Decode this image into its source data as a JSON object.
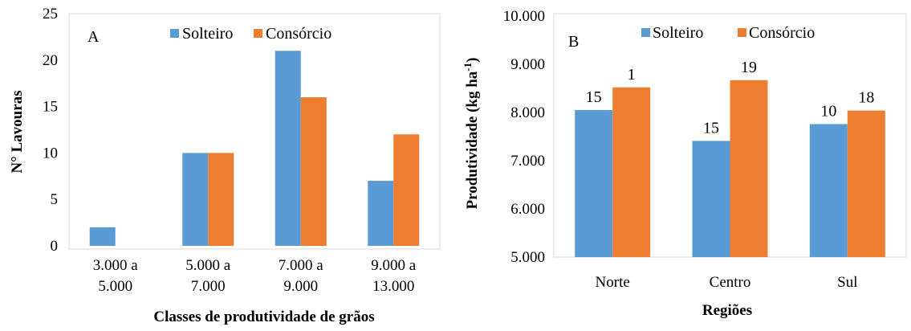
{
  "colors": {
    "Solteiro": "#5b9bd5",
    "Consórcio": "#ed7d31",
    "frame": "#d9d9d9"
  },
  "chart_data": [
    {
      "type": "bar",
      "panel": "A",
      "categories": [
        [
          "3.000 a",
          "5.000"
        ],
        [
          "5.000 a",
          "7.000"
        ],
        [
          "7.000 a",
          "9.000"
        ],
        [
          "9.000 a",
          "13.000"
        ]
      ],
      "series": [
        {
          "name": "Solteiro",
          "values": [
            2,
            10,
            21,
            7
          ]
        },
        {
          "name": "Consórcio",
          "values": [
            0,
            10,
            16,
            12
          ]
        }
      ],
      "xlabel": "Classes de produtividade de grãos",
      "ylabel": "N° Lavouras",
      "ylim": [
        0,
        25
      ],
      "yticks": [
        "0",
        "5",
        "10",
        "15",
        "20",
        "25"
      ],
      "legend": "top"
    },
    {
      "type": "bar",
      "panel": "B",
      "categories": [
        [
          "Norte"
        ],
        [
          "Centro"
        ],
        [
          "Sul"
        ]
      ],
      "series": [
        {
          "name": "Solteiro",
          "values": [
            8050,
            7410,
            7760
          ],
          "labels": [
            "15",
            "15",
            "10"
          ]
        },
        {
          "name": "Consórcio",
          "values": [
            8520,
            8670,
            8040
          ],
          "labels": [
            "1",
            "19",
            "18"
          ]
        }
      ],
      "xlabel": "Regiões",
      "ylabel": "Produtividade (kg ha",
      "ylabel_sup": "-1",
      "ylabel_end": ")",
      "ylim": [
        5000,
        10000
      ],
      "yticks": [
        "5.000",
        "6.000",
        "7.000",
        "8.000",
        "9.000",
        "10.000"
      ],
      "legend": "top"
    }
  ]
}
